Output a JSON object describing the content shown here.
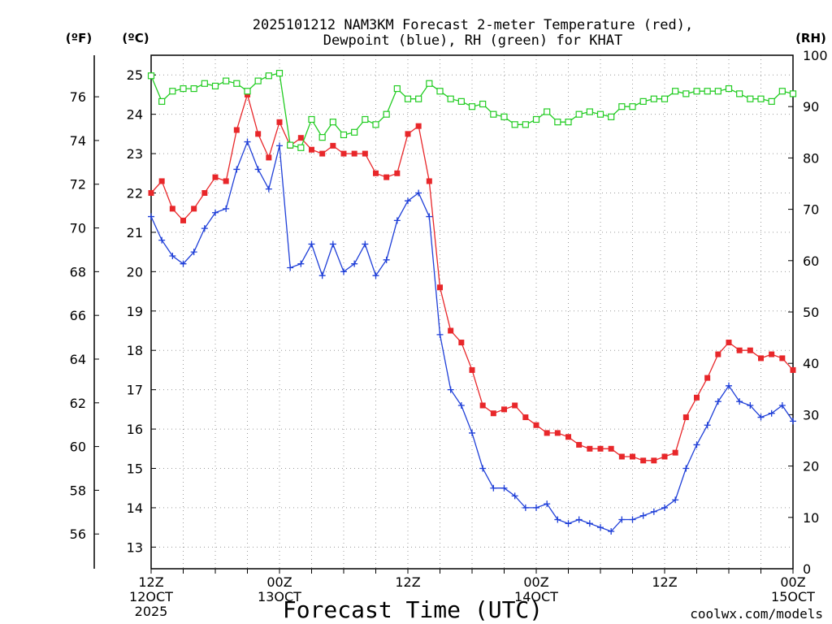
{
  "header": {
    "title_line1": "2025101212 NAM3KM Forecast 2-meter Temperature (red),",
    "title_line2": "Dewpoint (blue), RH (green) for KHAT",
    "unit_f": "(ºF)",
    "unit_c": "(ºC)",
    "unit_rh": "(RH)"
  },
  "footer": {
    "xlabel": "Forecast Time (UTC)",
    "credit": "coolwx.com/models"
  },
  "colors": {
    "temperature": "#e8272a",
    "dewpoint": "#1f3fd8",
    "rh": "#22cc22",
    "credit": "#e03030"
  },
  "chart_data": {
    "type": "line",
    "title": "2025101212 NAM3KM Forecast 2-meter Temperature (red), Dewpoint (blue), RH (green) for KHAT",
    "xlabel": "Forecast Time (UTC)",
    "x_unit": "forecast hour",
    "x": [
      0,
      1,
      2,
      3,
      4,
      5,
      6,
      7,
      8,
      9,
      10,
      11,
      12,
      13,
      14,
      15,
      16,
      17,
      18,
      19,
      20,
      21,
      22,
      23,
      24,
      25,
      26,
      27,
      28,
      29,
      30,
      31,
      32,
      33,
      34,
      35,
      36,
      37,
      38,
      39,
      40,
      41,
      42,
      43,
      44,
      45,
      46,
      47,
      48,
      49,
      50,
      51,
      52,
      53,
      54,
      55,
      56,
      57,
      58,
      59,
      60
    ],
    "xlim": [
      0,
      60
    ],
    "x_ticks": [
      {
        "x": 0,
        "lines": [
          "12Z",
          "12OCT",
          "2025"
        ]
      },
      {
        "x": 12,
        "lines": [
          "00Z",
          "13OCT"
        ]
      },
      {
        "x": 24,
        "lines": [
          "12Z"
        ]
      },
      {
        "x": 36,
        "lines": [
          "00Z",
          "14OCT"
        ]
      },
      {
        "x": 48,
        "lines": [
          "12Z"
        ]
      },
      {
        "x": 60,
        "lines": [
          "00Z",
          "15OCT"
        ]
      }
    ],
    "y_left_c": {
      "label": "(ºC)",
      "lim": [
        12.45,
        25.5
      ],
      "ticks": [
        13,
        14,
        15,
        16,
        17,
        18,
        19,
        20,
        21,
        22,
        23,
        24,
        25
      ]
    },
    "y_left_f": {
      "label": "(ºF)",
      "ticks": [
        56,
        58,
        60,
        62,
        64,
        66,
        68,
        70,
        72,
        74,
        76
      ]
    },
    "y_right_rh": {
      "label": "(RH)",
      "lim": [
        0,
        100
      ],
      "ticks": [
        0,
        10,
        20,
        30,
        40,
        50,
        60,
        70,
        80,
        90,
        100
      ]
    },
    "series": [
      {
        "name": "Temperature",
        "axis": "c",
        "values": [
          22.0,
          22.3,
          21.6,
          21.3,
          21.6,
          22.0,
          22.4,
          22.3,
          23.6,
          24.5,
          23.5,
          22.9,
          23.8,
          23.2,
          23.4,
          23.1,
          23.0,
          23.2,
          23.0,
          23.0,
          23.0,
          22.5,
          22.4,
          22.5,
          23.5,
          23.7,
          22.3,
          19.6,
          18.5,
          18.2,
          17.5,
          16.6,
          16.4,
          16.5,
          16.6,
          16.3,
          16.1,
          15.9,
          15.9,
          15.8,
          15.6,
          15.5,
          15.5,
          15.5,
          15.3,
          15.3,
          15.2,
          15.2,
          15.3,
          15.4,
          16.3,
          16.8,
          17.3,
          17.9,
          18.2,
          18.0,
          18.0,
          17.8,
          17.9,
          17.8,
          17.5
        ]
      },
      {
        "name": "Dewpoint",
        "axis": "c",
        "values": [
          21.4,
          20.8,
          20.4,
          20.2,
          20.5,
          21.1,
          21.5,
          21.6,
          22.6,
          23.3,
          22.6,
          22.1,
          23.2,
          20.1,
          20.2,
          20.7,
          19.9,
          20.7,
          20.0,
          20.2,
          20.7,
          19.9,
          20.3,
          21.3,
          21.8,
          22.0,
          21.4,
          18.4,
          17.0,
          16.6,
          15.9,
          15.0,
          14.5,
          14.5,
          14.3,
          14.0,
          14.0,
          14.1,
          13.7,
          13.6,
          13.7,
          13.6,
          13.5,
          13.4,
          13.7,
          13.7,
          13.8,
          13.9,
          14.0,
          14.2,
          15.0,
          15.6,
          16.1,
          16.7,
          17.1,
          16.7,
          16.6,
          16.3,
          16.4,
          16.6,
          16.2
        ]
      },
      {
        "name": "RH",
        "axis": "rh",
        "values": [
          96,
          91,
          93,
          93.5,
          93.5,
          94.5,
          94,
          95,
          94.5,
          93,
          95,
          96,
          96.5,
          82.5,
          82,
          87.5,
          84,
          87,
          84.5,
          85,
          87.5,
          86.5,
          88.5,
          93.5,
          91.5,
          91.5,
          94.5,
          93,
          91.5,
          91,
          90,
          90.5,
          88.5,
          88,
          86.5,
          86.5,
          87.5,
          89,
          87,
          87,
          88.5,
          89,
          88.5,
          88,
          90,
          90,
          91,
          91.5,
          91.5,
          93,
          92.5,
          93,
          93,
          93,
          93.5,
          92.5,
          91.5,
          91.5,
          91,
          93,
          92.5
        ]
      }
    ]
  }
}
